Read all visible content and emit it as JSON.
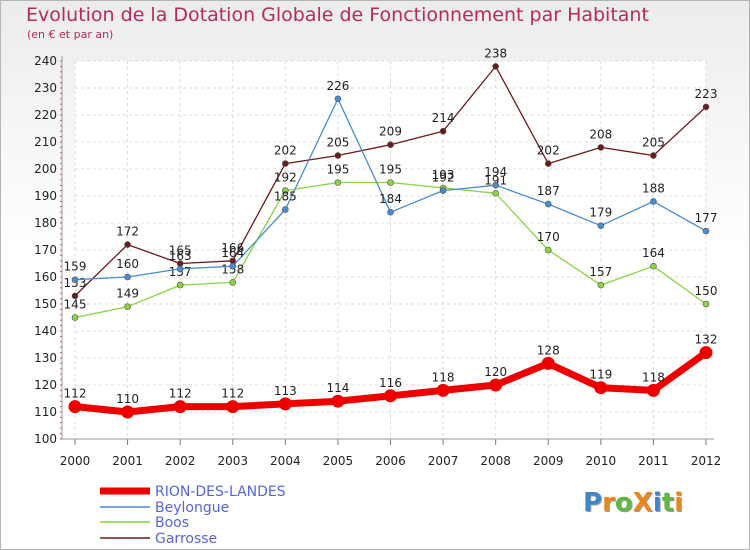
{
  "header": {
    "title": "Evolution de la Dotation Globale de Fonctionnement par Habitant",
    "subtitle": "(en € et par an)"
  },
  "logo": {
    "text": "ProXiti",
    "letters": [
      "P",
      "r",
      "o",
      "X",
      "i",
      "t",
      "i"
    ],
    "colors": [
      "#3f86c9",
      "#e8871f",
      "#62b644",
      "#e8871f",
      "#3f86c9",
      "#62b644",
      "#e8871f"
    ]
  },
  "chart_data": {
    "type": "line",
    "title": "Evolution de la Dotation Globale de Fonctionnement par Habitant",
    "subtitle": "(en € et par an)",
    "xlabel": "",
    "ylabel": "",
    "x": [
      2000,
      2001,
      2002,
      2003,
      2004,
      2005,
      2006,
      2007,
      2008,
      2009,
      2010,
      2011,
      2012
    ],
    "x_labels": [
      "2000",
      "2001",
      "2002",
      "2003",
      "2004",
      "2005",
      "2006",
      "2007",
      "2008",
      "2009",
      "2010",
      "2011",
      "2012"
    ],
    "ylim": [
      100,
      240
    ],
    "y_ticks": [
      100,
      110,
      120,
      130,
      140,
      150,
      160,
      170,
      180,
      190,
      200,
      210,
      220,
      230,
      240
    ],
    "grid": true,
    "legend_position": "bottom-left",
    "series": [
      {
        "name": "RION-DES-LANDES",
        "color": "#ee0000",
        "values": [
          112,
          110,
          112,
          112,
          113,
          114,
          116,
          118,
          120,
          128,
          119,
          118,
          132
        ],
        "labels": [
          "112",
          "110",
          "112",
          "112",
          "113",
          "114",
          "116",
          "118",
          "120",
          "128",
          "119",
          "118",
          "132"
        ]
      },
      {
        "name": "Beylongue",
        "color": "#4b8cd1",
        "values": [
          159,
          160,
          163,
          164,
          185,
          226,
          184,
          192,
          194,
          187,
          179,
          188,
          177
        ],
        "labels": [
          "159",
          "160",
          "163",
          "164",
          "185",
          "226",
          "184",
          "192",
          "194",
          "187",
          "179",
          "188",
          "177"
        ]
      },
      {
        "name": "Boos",
        "color": "#8bd33f",
        "values": [
          145,
          149,
          157,
          158,
          192,
          195,
          195,
          193,
          191,
          170,
          157,
          164,
          150
        ],
        "labels": [
          "145",
          "149",
          "157",
          "158",
          "192",
          "195",
          "195",
          "193",
          "191",
          "170",
          "157",
          "164",
          "150"
        ]
      },
      {
        "name": "Garrosse",
        "color": "#6a1c1c",
        "values": [
          153,
          172,
          165,
          166,
          202,
          205,
          209,
          214,
          238,
          202,
          208,
          205,
          223
        ],
        "labels": [
          "153",
          "172",
          "165",
          "166",
          "202",
          "205",
          "209",
          "214",
          "238",
          "202",
          "208",
          "205",
          "223"
        ]
      }
    ]
  }
}
